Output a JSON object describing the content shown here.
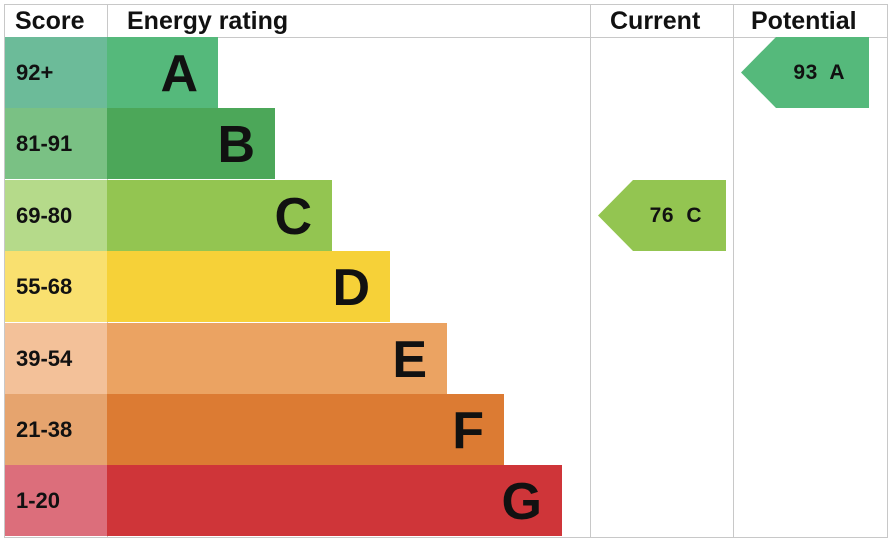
{
  "headers": {
    "score": "Score",
    "energy_rating": "Energy rating",
    "current": "Current",
    "potential": "Potential"
  },
  "bands": [
    {
      "score": "92+",
      "letter": "A",
      "bar_color": "#55b97b",
      "score_color": "#6cbb99"
    },
    {
      "score": "81-91",
      "letter": "B",
      "bar_color": "#4ca759",
      "score_color": "#7ac184"
    },
    {
      "score": "69-80",
      "letter": "C",
      "bar_color": "#93c551",
      "score_color": "#b5da8a"
    },
    {
      "score": "55-68",
      "letter": "D",
      "bar_color": "#f6d138",
      "score_color": "#f9e06f"
    },
    {
      "score": "39-54",
      "letter": "E",
      "bar_color": "#eba362",
      "score_color": "#f3c199"
    },
    {
      "score": "21-38",
      "letter": "F",
      "bar_color": "#dc7b33",
      "score_color": "#e6a46e"
    },
    {
      "score": "1-20",
      "letter": "G",
      "bar_color": "#cf3539",
      "score_color": "#dc6e7b"
    }
  ],
  "current": {
    "label": "76  C",
    "value": 76,
    "band": "C",
    "color": "#93c551"
  },
  "potential": {
    "label": "93  A",
    "value": 93,
    "band": "A",
    "color": "#55b97b"
  },
  "chart_data": {
    "type": "bar",
    "title": "Energy rating",
    "categories": [
      "A",
      "B",
      "C",
      "D",
      "E",
      "F",
      "G"
    ],
    "score_ranges": [
      "92+",
      "81-91",
      "69-80",
      "55-68",
      "39-54",
      "21-38",
      "1-20"
    ],
    "series": [
      {
        "name": "Current",
        "value": 76,
        "band": "C"
      },
      {
        "name": "Potential",
        "value": 93,
        "band": "A"
      }
    ],
    "columns": [
      "Score",
      "Energy rating",
      "Current",
      "Potential"
    ],
    "legend": "none",
    "grid": false
  }
}
